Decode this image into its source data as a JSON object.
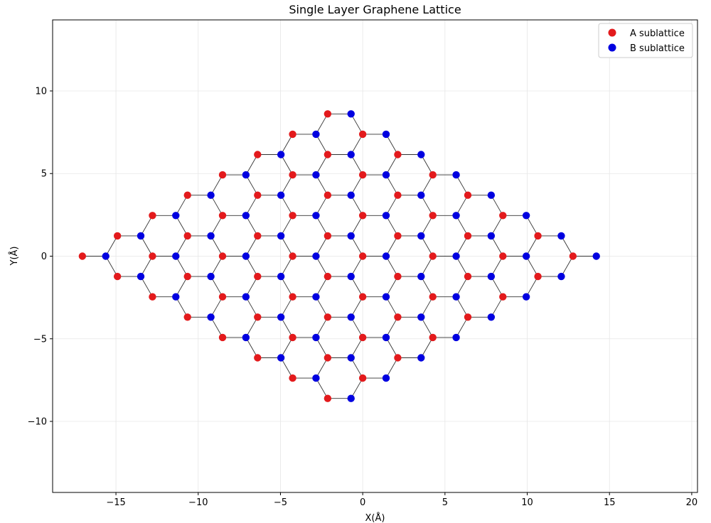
{
  "chart_data": {
    "type": "scatter",
    "title": "Single Layer Graphene Lattice",
    "xlabel": "X(Å)",
    "ylabel": "Y(Å)",
    "xlim": [
      -18.85,
      20.35
    ],
    "ylim": [
      -14.3,
      14.3
    ],
    "xticks": [
      -15,
      -10,
      -5,
      0,
      5,
      10,
      15,
      20
    ],
    "yticks": [
      -10,
      -5,
      0,
      5,
      10
    ],
    "xtick_labels": [
      "−15",
      "−10",
      "−5",
      "0",
      "5",
      "10",
      "15",
      "20"
    ],
    "ytick_labels": [
      "−10",
      "−5",
      "0",
      "5",
      "10"
    ],
    "grid": true,
    "legend_position": "top-right",
    "lattice": {
      "cells_per_side": 8,
      "a1": [
        2.13,
        1.23
      ],
      "a2": [
        2.13,
        -1.23
      ],
      "basis_offset_B": [
        1.42,
        0.0
      ],
      "bond_length": 1.42,
      "bond_color": "#333333"
    },
    "series": [
      {
        "name": "A sublattice",
        "color": "#e31a1c"
      },
      {
        "name": "B sublattice",
        "color": "#0000e0"
      }
    ]
  }
}
